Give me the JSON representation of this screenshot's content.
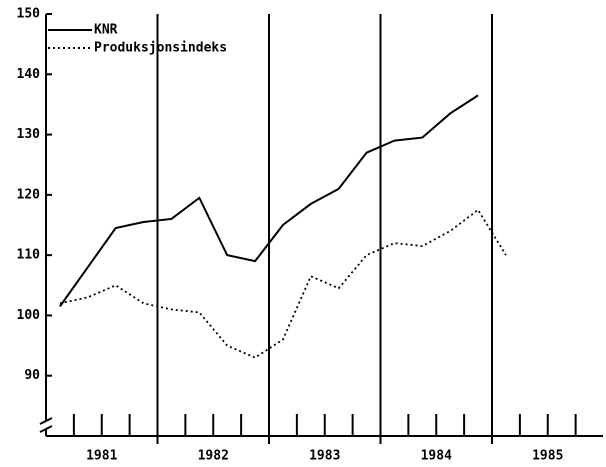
{
  "chart_data": {
    "type": "line",
    "x": [
      1981.125,
      1981.375,
      1981.625,
      1981.875,
      1982.125,
      1982.375,
      1982.625,
      1982.875,
      1983.125,
      1983.375,
      1983.625,
      1983.875,
      1984.125,
      1984.375,
      1984.625,
      1984.875,
      1985.125
    ],
    "series": [
      {
        "name": "KNR",
        "color": "#000000",
        "dash": "solid",
        "values": [
          101.5,
          108,
          114.5,
          115.5,
          116,
          119.5,
          110,
          109,
          115,
          118.5,
          121,
          127,
          129,
          129.5,
          133.5,
          136.5,
          null
        ]
      },
      {
        "name": "Produksjonsindeks",
        "color": "#000000",
        "dash": "dotted",
        "values": [
          102,
          103,
          105,
          102,
          101,
          100.5,
          95,
          93,
          96,
          106.5,
          104.5,
          110,
          112,
          111.5,
          114,
          117.5,
          110
        ]
      }
    ],
    "xlim": [
      1981,
      1986
    ],
    "xticks": [
      {
        "value": 1981.5,
        "label": "1981"
      },
      {
        "value": 1982.5,
        "label": "1982"
      },
      {
        "value": 1983.5,
        "label": "1983"
      },
      {
        "value": 1984.5,
        "label": "1984"
      },
      {
        "value": 1985.5,
        "label": "1985"
      }
    ],
    "xgrid": [
      1982,
      1983,
      1984,
      1985
    ],
    "xminor": [
      1981.25,
      1981.5,
      1981.75,
      1982.25,
      1982.5,
      1982.75,
      1983.25,
      1983.5,
      1983.75,
      1984.25,
      1984.5,
      1984.75,
      1985.25,
      1985.5,
      1985.75
    ],
    "ylim": [
      80,
      150
    ],
    "yticks": [
      90,
      100,
      110,
      120,
      130,
      140,
      150
    ],
    "legend": "top-left"
  }
}
